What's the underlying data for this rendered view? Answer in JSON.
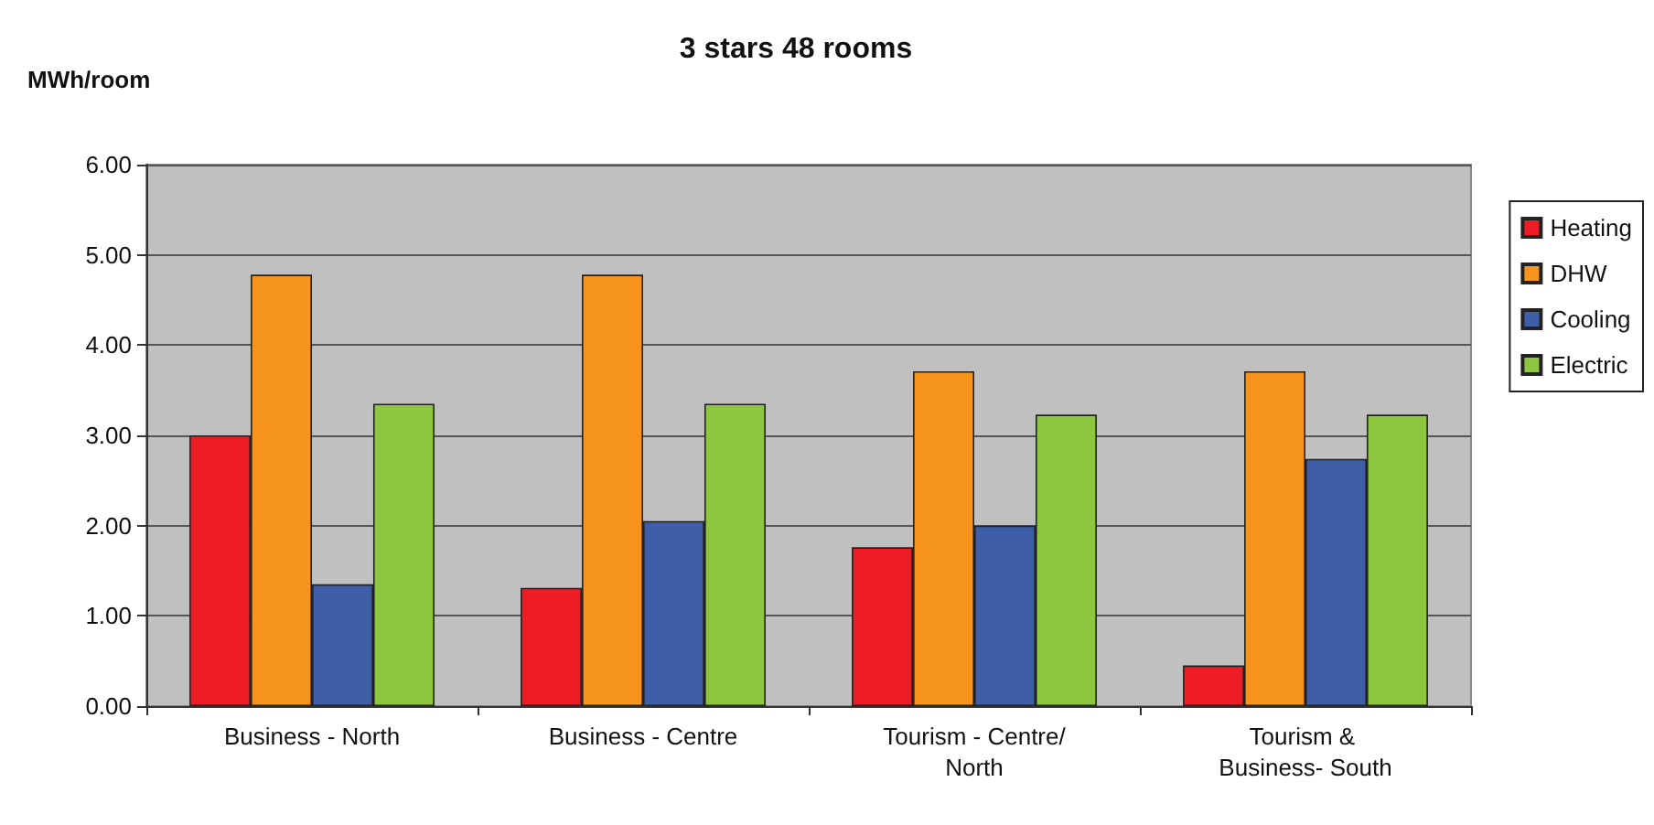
{
  "chart_data": {
    "type": "bar",
    "title": "3 stars 48 rooms",
    "ylabel": "MWh/room",
    "categories": [
      "Business - North",
      "Business - Centre",
      "Tourism - Centre/North",
      "Tourism & Business- South"
    ],
    "series": [
      {
        "name": "Heating",
        "color": "#ee1c25",
        "values": [
          3.0,
          1.31,
          1.76,
          0.45
        ]
      },
      {
        "name": "DHW",
        "color": "#f7941d",
        "values": [
          4.78,
          4.78,
          3.71,
          3.71
        ]
      },
      {
        "name": "Cooling",
        "color": "#3e5ea8",
        "values": [
          1.35,
          2.05,
          2.0,
          2.74
        ]
      },
      {
        "name": "Electric",
        "color": "#8dc63f",
        "values": [
          3.35,
          3.35,
          3.23,
          3.23
        ]
      }
    ],
    "ylim": [
      0,
      6
    ],
    "yticks": [
      {
        "value": 0,
        "label": "0.00"
      },
      {
        "value": 1,
        "label": "1.00"
      },
      {
        "value": 2,
        "label": "2.00"
      },
      {
        "value": 3,
        "label": "3.00"
      },
      {
        "value": 4,
        "label": "4.00"
      },
      {
        "value": 5,
        "label": "5.00"
      },
      {
        "value": 6,
        "label": "6.00"
      }
    ],
    "grid": "y",
    "legend": "right"
  }
}
